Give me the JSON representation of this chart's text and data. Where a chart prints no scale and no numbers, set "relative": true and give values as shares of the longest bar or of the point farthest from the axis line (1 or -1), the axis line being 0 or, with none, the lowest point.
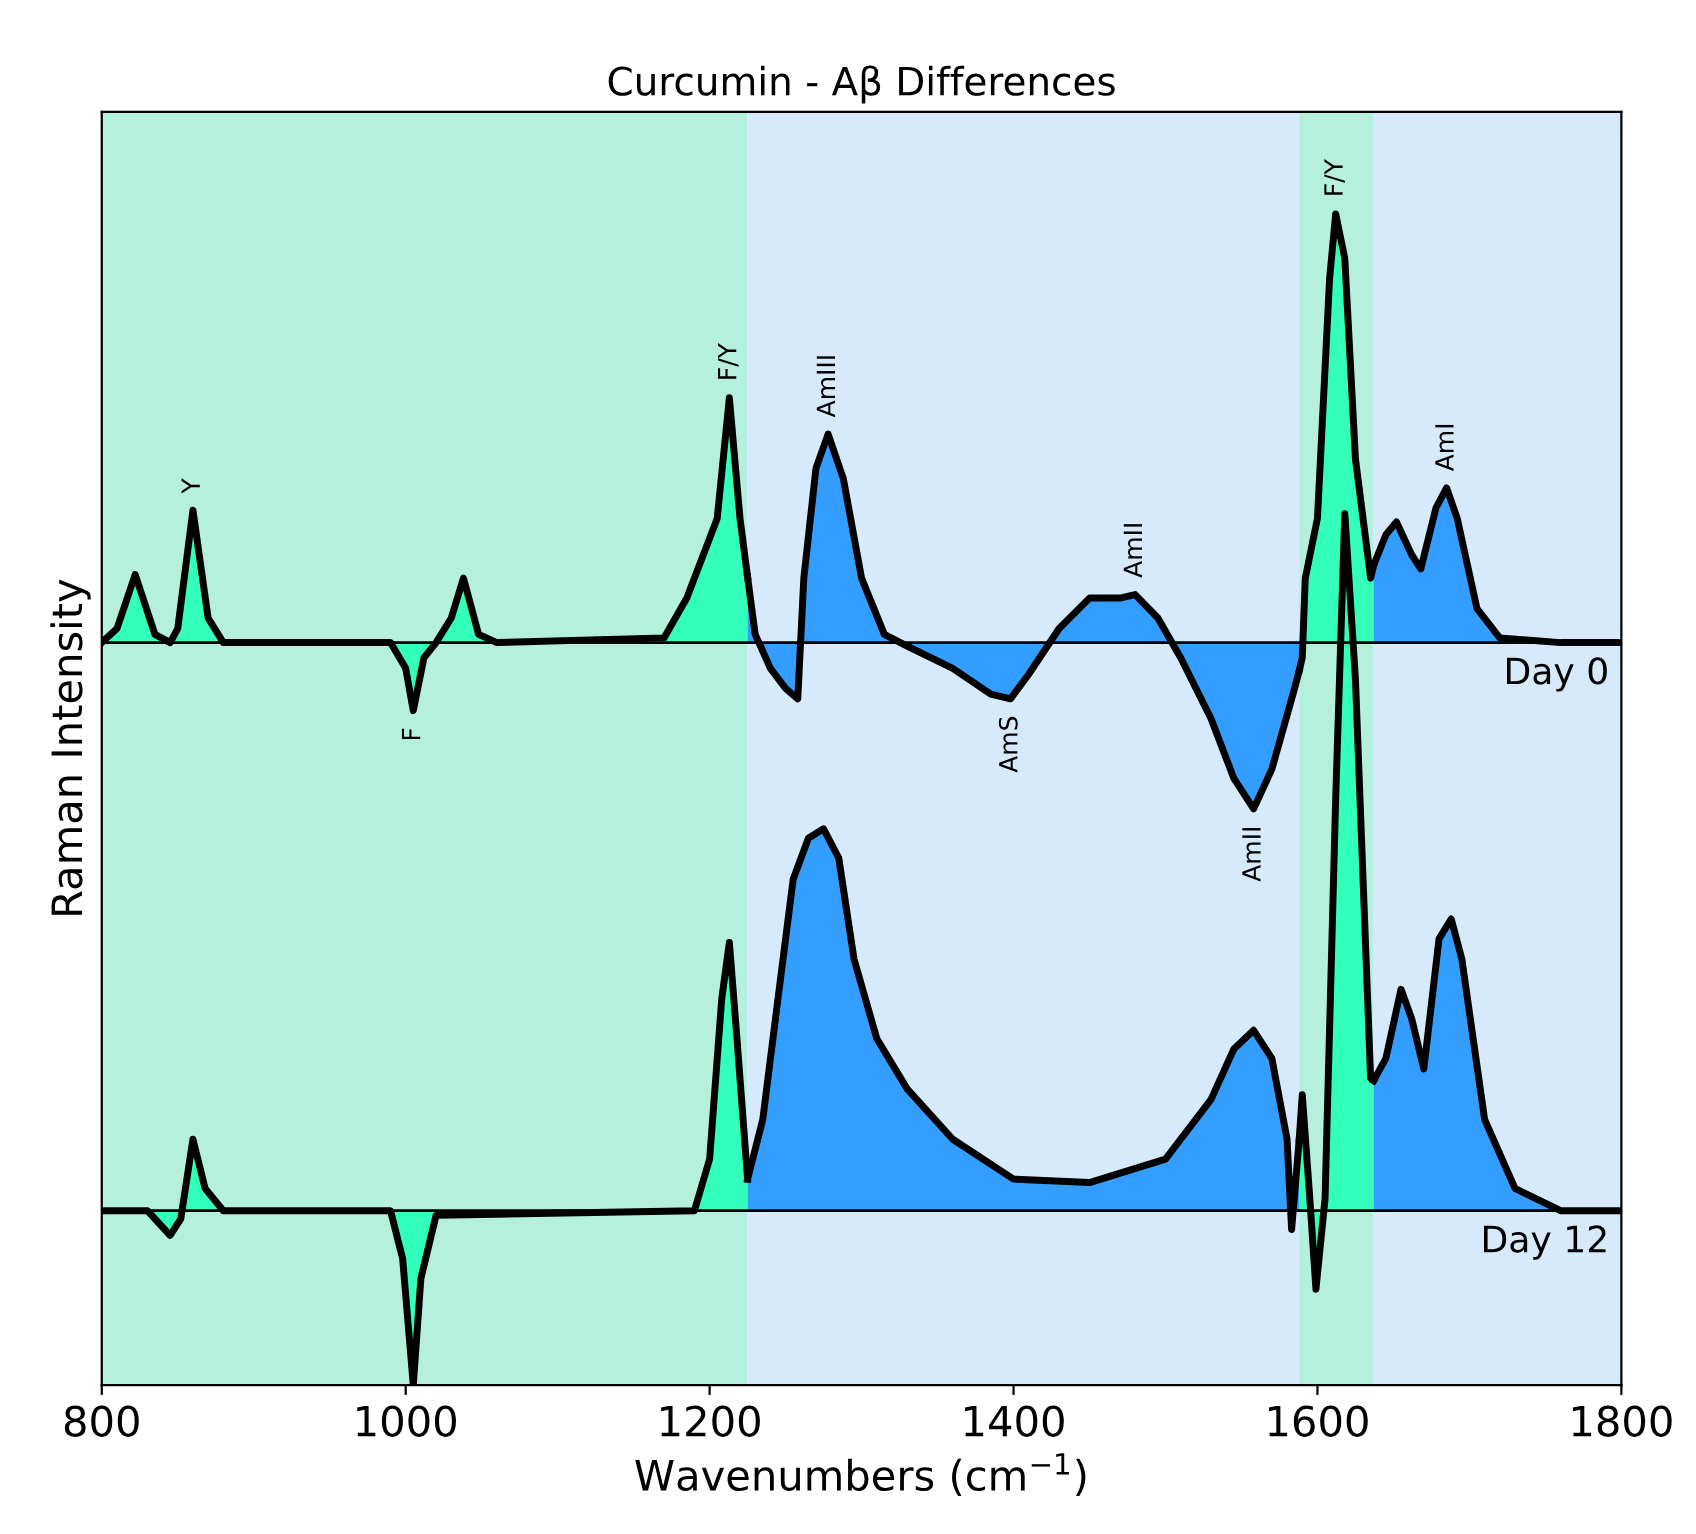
{
  "chart_data": {
    "type": "area",
    "title": "Curcumin - Aβ Differences",
    "xlabel": "Wavenumbers (cm$^{−1}$)",
    "ylabel": "Raman Intensity",
    "relative": true,
    "xlim": [
      800,
      1800
    ],
    "xticks": [
      800,
      1000,
      1200,
      1400,
      1600,
      1800
    ],
    "tick_labels": "x",
    "grid": false,
    "annotations": [
      {
        "text": "Y",
        "x": 860,
        "y": 0.747
      },
      {
        "text": "F",
        "x": 1005,
        "y": 0.576
      },
      {
        "text": "F/Y",
        "x": 1213,
        "y": 0.843
      },
      {
        "text": "AmIII",
        "x": 1278,
        "y": 0.812
      },
      {
        "text": "AmS",
        "x": 1398,
        "y": 0.586
      },
      {
        "text": "AmII",
        "x": 1480,
        "y": 0.675
      },
      {
        "text": "AmII",
        "x": 1558,
        "y": 0.492
      },
      {
        "text": "F/Y",
        "x": 1612,
        "y": 1.0
      },
      {
        "text": "AmI",
        "x": 1685,
        "y": 0.766
      }
    ],
    "series": [
      {
        "color": "#33ffbb",
        "x": [
          800,
          810,
          822,
          835,
          845,
          850,
          860,
          870,
          880,
          990,
          1000,
          1005,
          1012,
          1020,
          1030,
          1038,
          1048,
          1060,
          1170,
          1185,
          1195,
          1205,
          1213,
          1220,
          1225,
          1400,
          1588,
          1590,
          1592,
          1600,
          1608,
          1612,
          1618,
          1625,
          1635,
          1637
        ],
        "values": [
          0.634,
          0.646,
          0.692,
          0.641,
          0.634,
          0.646,
          0.747,
          0.655,
          0.634,
          0.634,
          0.612,
          0.576,
          0.621,
          0.634,
          0.655,
          0.689,
          0.641,
          0.634,
          0.638,
          0.672,
          0.706,
          0.74,
          0.843,
          0.74,
          0.69,
          null,
          0.61,
          0.621,
          0.689,
          0.74,
          0.945,
          1.0,
          0.962,
          0.791,
          0.689,
          0.7
        ]
      },
      {
        "color": "#339eff",
        "x": [
          1225,
          1230,
          1240,
          1250,
          1258,
          1262,
          1270,
          1278,
          1288,
          1300,
          1315,
          1330,
          1360,
          1385,
          1398,
          1410,
          1430,
          1450,
          1470,
          1480,
          1495,
          1510,
          1530,
          1545,
          1558,
          1570,
          1585,
          1588,
          1612,
          1637,
          1645,
          1652,
          1662,
          1668,
          1678,
          1685,
          1692,
          1705,
          1720,
          1760,
          1800
        ],
        "values": [
          0.69,
          0.641,
          0.612,
          0.595,
          0.586,
          0.689,
          0.783,
          0.812,
          0.774,
          0.689,
          0.641,
          0.631,
          0.612,
          0.59,
          0.586,
          0.607,
          0.646,
          0.672,
          0.672,
          0.675,
          0.655,
          0.621,
          0.569,
          0.518,
          0.492,
          0.526,
          0.595,
          0.61,
          null,
          0.7,
          0.726,
          0.737,
          0.709,
          0.697,
          0.749,
          0.766,
          0.74,
          0.663,
          0.638,
          0.634,
          0.634
        ]
      },
      {
        "color": "#33ffbc",
        "x": [
          800,
          830,
          845,
          852,
          860,
          868,
          880,
          990,
          998,
          1005,
          1010,
          1020,
          1190,
          1200,
          1208,
          1213,
          1218,
          1225,
          1400,
          1588,
          1590,
          1595,
          1599,
          1605,
          1612,
          1618,
          1625,
          1635,
          1637
        ],
        "values": [
          0.149,
          0.149,
          0.128,
          0.142,
          0.21,
          0.168,
          0.149,
          0.149,
          0.108,
          0,
          0.091,
          0.145,
          0.149,
          0.193,
          0.33,
          0.378,
          0.296,
          0.176,
          null,
          0.21,
          0.248,
          0.159,
          0.082,
          0.159,
          0.501,
          0.744,
          0.603,
          0.262,
          0.26
        ]
      },
      {
        "color": "#339efe",
        "x": [
          1225,
          1235,
          1245,
          1255,
          1265,
          1275,
          1285,
          1295,
          1310,
          1330,
          1360,
          1400,
          1450,
          1500,
          1530,
          1545,
          1558,
          1570,
          1580,
          1583,
          1588,
          1612,
          1637,
          1645,
          1655,
          1662,
          1670,
          1680,
          1688,
          1695,
          1710,
          1730,
          1760,
          1800
        ],
        "values": [
          0.176,
          0.227,
          0.33,
          0.432,
          0.467,
          0.475,
          0.45,
          0.364,
          0.296,
          0.253,
          0.21,
          0.176,
          0.173,
          0.193,
          0.244,
          0.287,
          0.303,
          0.279,
          0.21,
          0.133,
          0.21,
          null,
          0.26,
          0.279,
          0.338,
          0.313,
          0.27,
          0.381,
          0.398,
          0.364,
          0.227,
          0.168,
          0.149,
          0.149
        ]
      }
    ],
    "ref_lines": [
      {
        "axis": "y",
        "value": 0.634,
        "label": "Day 0",
        "color": "#000000"
      },
      {
        "axis": "y",
        "value": 0.149,
        "label": "Day 12",
        "color": "#000000"
      }
    ],
    "bands": [
      {
        "axis": "x",
        "from": 800,
        "to": 1225,
        "color": "#b4f0dc"
      },
      {
        "axis": "x",
        "from": 1225,
        "to": 1588,
        "color": "#d6eafc"
      },
      {
        "axis": "x",
        "from": 1588,
        "to": 1637,
        "color": "#b4f0dc"
      },
      {
        "axis": "x",
        "from": 1637,
        "to": 1800,
        "color": "#d6eafc"
      }
    ]
  }
}
